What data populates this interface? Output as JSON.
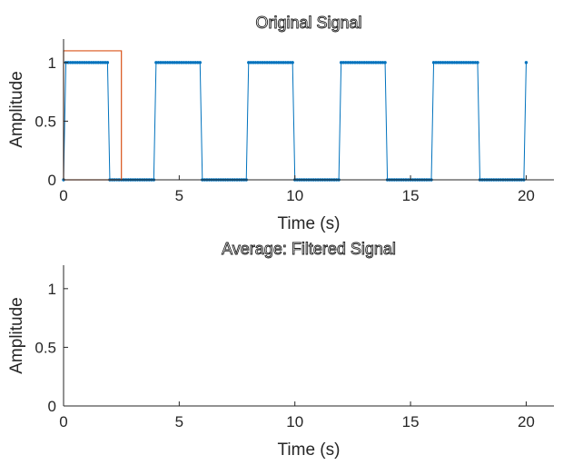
{
  "chart_data": [
    {
      "type": "line",
      "title": "Original Signal",
      "xlabel": "Time (s)",
      "ylabel": "Amplitude",
      "xlim": [
        0,
        21.2
      ],
      "ylim": [
        0,
        1.2
      ],
      "xticks": [
        0,
        5,
        10,
        15,
        20
      ],
      "xtick_labels": [
        "0",
        "5",
        "10",
        "15",
        "20"
      ],
      "yticks": [
        0,
        0.5,
        1
      ],
      "ytick_labels": [
        "0",
        "0.5",
        "1"
      ],
      "grid": false,
      "series": [
        {
          "color": "#0072BD",
          "style": "line-with-dot-markers",
          "description_values": "square wave, period 4 s, high 0-2 s, low 2-4 s, sampled every 0.1 s from 0 to 20 s",
          "period": 4,
          "high_duration": 2,
          "x_start": 0,
          "x_end": 20,
          "sample_step": 0.1
        },
        {
          "color": "#D95319",
          "style": "line",
          "x": [
            0,
            0,
            2.5,
            2.5,
            0
          ],
          "y": [
            0,
            1.1,
            1.1,
            0,
            0
          ]
        }
      ]
    },
    {
      "type": "line",
      "title": "Average: Filtered Signal",
      "xlabel": "Time (s)",
      "ylabel": "Amplitude",
      "xlim": [
        0,
        21.2
      ],
      "ylim": [
        0,
        1.2
      ],
      "xticks": [
        0,
        5,
        10,
        15,
        20
      ],
      "xtick_labels": [
        "0",
        "5",
        "10",
        "15",
        "20"
      ],
      "yticks": [
        0,
        0.5,
        1
      ],
      "ytick_labels": [
        "0",
        "0.5",
        "1"
      ],
      "grid": false,
      "series": []
    }
  ]
}
